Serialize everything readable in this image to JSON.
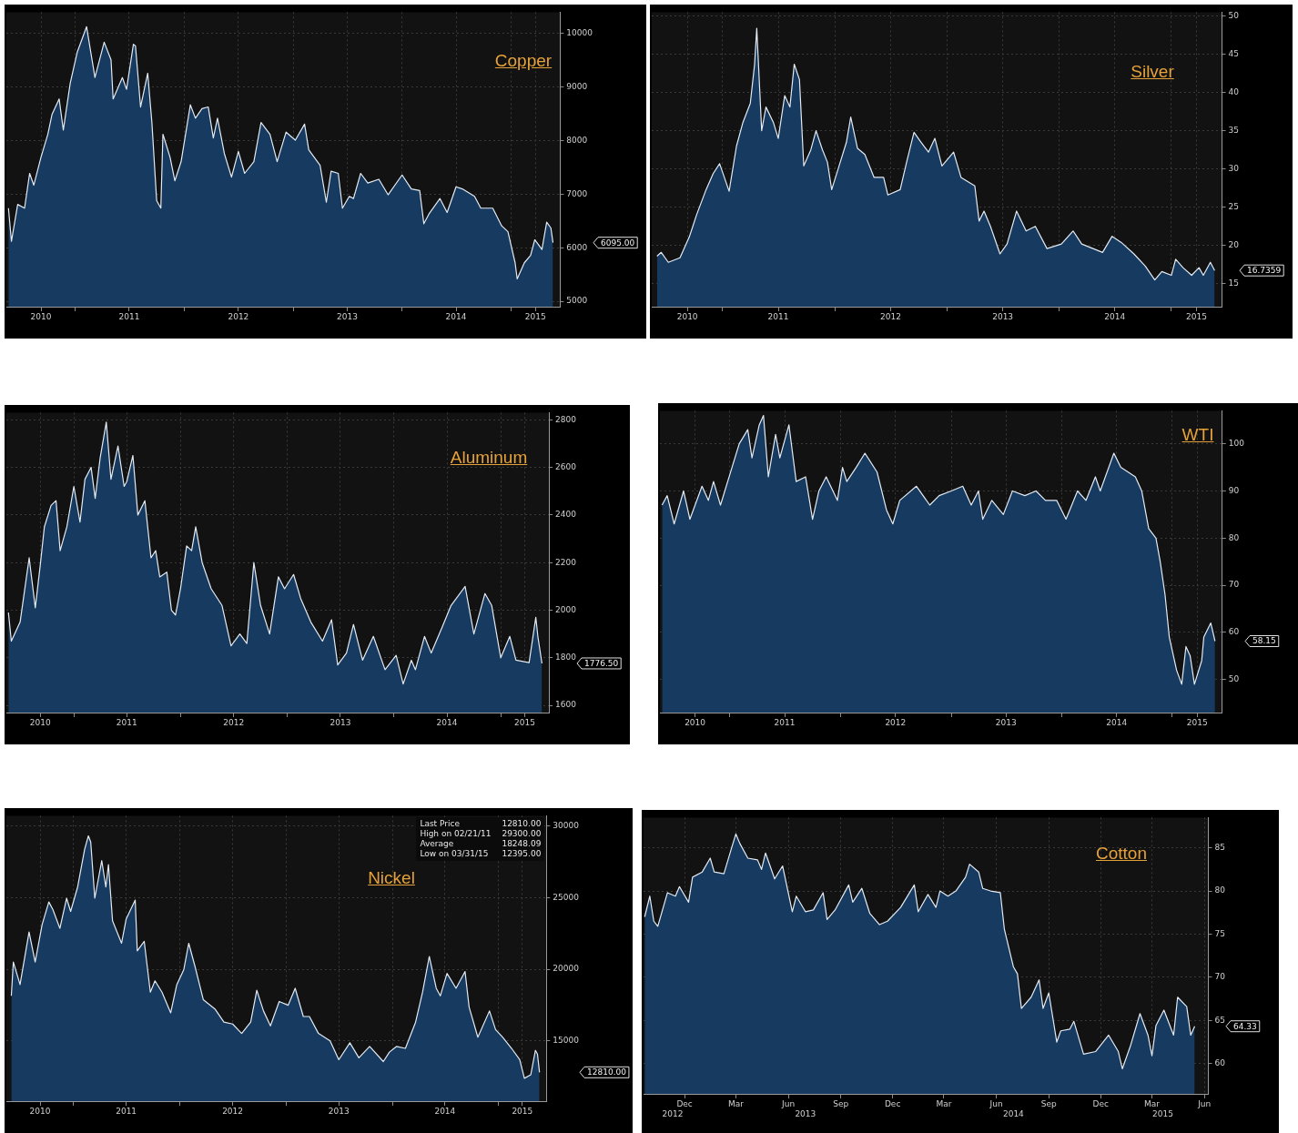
{
  "chart_data": [
    {
      "type": "area",
      "title": "Copper",
      "color": "#173a60",
      "grid": true,
      "xlim": [
        "2010-05-15",
        "2015-06-15"
      ],
      "ylim": [
        4900,
        10400
      ],
      "yticks": [
        5000,
        6000,
        7000,
        8000,
        9000,
        10000
      ],
      "xticks": [
        {
          "value": "2010-09-08",
          "label": "2010"
        },
        {
          "value": "2011-01-01",
          "label": null
        },
        {
          "value": "2011-07-01",
          "label": "2011"
        },
        {
          "value": "2012-01-01",
          "label": null
        },
        {
          "value": "2012-07-01",
          "label": "2012"
        },
        {
          "value": "2013-01-01",
          "label": null
        },
        {
          "value": "2013-07-01",
          "label": "2013"
        },
        {
          "value": "2014-01-01",
          "label": null
        },
        {
          "value": "2014-07-01",
          "label": "2014"
        },
        {
          "value": "2015-01-01",
          "label": null
        },
        {
          "value": "2015-03-24",
          "label": "2015"
        }
      ],
      "x": [
        "2010-05-22",
        "2010-06-01",
        "2010-06-22",
        "2010-07-15",
        "2010-08-01",
        "2010-08-15",
        "2010-09-08",
        "2010-10-01",
        "2010-10-15",
        "2010-11-08",
        "2010-11-22",
        "2010-12-15",
        "2011-01-08",
        "2011-02-08",
        "2011-03-08",
        "2011-04-08",
        "2011-05-01",
        "2011-05-08",
        "2011-06-08",
        "2011-06-22",
        "2011-07-15",
        "2011-07-22",
        "2011-08-08",
        "2011-09-01",
        "2011-09-15",
        "2011-10-01",
        "2011-10-15",
        "2011-10-22",
        "2011-11-15",
        "2011-12-01",
        "2011-12-22",
        "2012-01-22",
        "2012-02-08",
        "2012-03-01",
        "2012-03-22",
        "2012-04-08",
        "2012-04-22",
        "2012-05-15",
        "2012-06-08",
        "2012-07-01",
        "2012-07-22",
        "2012-08-22",
        "2012-09-15",
        "2012-10-15",
        "2012-11-08",
        "2012-12-08",
        "2013-01-08",
        "2013-02-08",
        "2013-02-22",
        "2013-04-01",
        "2013-04-22",
        "2013-05-08",
        "2013-06-01",
        "2013-06-15",
        "2013-07-08",
        "2013-07-22",
        "2013-08-15",
        "2013-09-08",
        "2013-10-15",
        "2013-11-15",
        "2014-01-01",
        "2014-02-01",
        "2014-03-01",
        "2014-03-15",
        "2014-04-01",
        "2014-05-08",
        "2014-06-01",
        "2014-07-01",
        "2014-07-22",
        "2014-09-01",
        "2014-09-22",
        "2014-11-01",
        "2014-12-01",
        "2014-12-22",
        "2015-01-15",
        "2015-01-22",
        "2015-02-15",
        "2015-03-08",
        "2015-03-22",
        "2015-04-15",
        "2015-05-01",
        "2015-05-15",
        "2015-05-22"
      ],
      "values": [
        6740,
        6120,
        6810,
        6740,
        7390,
        7170,
        7690,
        8120,
        8490,
        8780,
        8200,
        9070,
        9660,
        10130,
        9180,
        9840,
        9510,
        8780,
        9180,
        8960,
        9800,
        9770,
        8630,
        9260,
        8340,
        6880,
        6740,
        8120,
        7690,
        7250,
        7610,
        8670,
        8420,
        8600,
        8630,
        8050,
        8420,
        7760,
        7320,
        7800,
        7390,
        7610,
        8340,
        8120,
        7610,
        8160,
        8010,
        8310,
        7830,
        7540,
        6850,
        7430,
        7390,
        6740,
        6960,
        6920,
        7390,
        7210,
        7280,
        6990,
        7360,
        7100,
        7070,
        6450,
        6630,
        6920,
        6660,
        7140,
        7100,
        6960,
        6740,
        6740,
        6410,
        6300,
        5720,
        5420,
        5720,
        5860,
        6150,
        5970,
        6480,
        6370,
        6095
      ],
      "annotations": [
        "6095.00"
      ]
    },
    {
      "type": "area",
      "title": "Silver",
      "color": "#173a60",
      "grid": true,
      "xlim": [
        "2010-05-15",
        "2015-06-15"
      ],
      "ylim": [
        12,
        50.5
      ],
      "yticks": [
        15,
        20,
        25,
        30,
        35,
        40,
        45,
        50
      ],
      "xticks": [
        {
          "value": "2010-09-08",
          "label": "2010"
        },
        {
          "value": "2011-01-01",
          "label": null
        },
        {
          "value": "2011-07-01",
          "label": "2011"
        },
        {
          "value": "2012-01-01",
          "label": null
        },
        {
          "value": "2012-07-01",
          "label": "2012"
        },
        {
          "value": "2013-01-01",
          "label": null
        },
        {
          "value": "2013-07-01",
          "label": "2013"
        },
        {
          "value": "2014-01-01",
          "label": null
        },
        {
          "value": "2014-07-01",
          "label": "2014"
        },
        {
          "value": "2015-01-01",
          "label": null
        },
        {
          "value": "2015-03-24",
          "label": "2015"
        }
      ],
      "x": [
        "2010-06-01",
        "2010-06-15",
        "2010-07-08",
        "2010-08-15",
        "2010-09-15",
        "2010-10-08",
        "2010-11-08",
        "2010-12-01",
        "2010-12-22",
        "2011-01-22",
        "2011-02-15",
        "2011-03-08",
        "2011-04-01",
        "2011-04-15",
        "2011-04-22",
        "2011-05-08",
        "2011-05-22",
        "2011-06-15",
        "2011-07-01",
        "2011-07-22",
        "2011-08-08",
        "2011-08-22",
        "2011-09-08",
        "2011-09-22",
        "2011-10-15",
        "2011-11-01",
        "2011-11-22",
        "2011-12-08",
        "2011-12-22",
        "2012-01-15",
        "2012-02-08",
        "2012-02-22",
        "2012-03-15",
        "2012-04-08",
        "2012-05-08",
        "2012-06-08",
        "2012-06-22",
        "2012-08-01",
        "2012-08-22",
        "2012-09-15",
        "2012-10-08",
        "2012-11-01",
        "2012-11-22",
        "2012-12-15",
        "2013-01-22",
        "2013-02-15",
        "2013-04-01",
        "2013-04-15",
        "2013-05-01",
        "2013-05-22",
        "2013-06-22",
        "2013-07-15",
        "2013-08-15",
        "2013-09-15",
        "2013-10-15",
        "2013-11-22",
        "2014-01-08",
        "2014-02-15",
        "2014-03-15",
        "2014-05-22",
        "2014-06-22",
        "2014-07-22",
        "2014-09-01",
        "2014-10-08",
        "2014-11-08",
        "2014-12-01",
        "2015-01-01",
        "2015-01-15",
        "2015-02-08",
        "2015-03-08",
        "2015-04-01",
        "2015-04-15",
        "2015-05-08",
        "2015-05-22"
      ],
      "values": [
        18.6,
        19.1,
        17.8,
        18.4,
        21.2,
        24.0,
        27.3,
        29.4,
        30.7,
        27.1,
        33.0,
        36.1,
        38.6,
        43.7,
        48.4,
        35.0,
        38.1,
        36.1,
        34.0,
        39.6,
        38.1,
        43.7,
        41.7,
        30.4,
        32.5,
        35.0,
        32.5,
        30.9,
        27.3,
        30.4,
        33.5,
        36.8,
        32.7,
        31.9,
        28.9,
        28.9,
        26.6,
        27.3,
        30.9,
        34.8,
        33.5,
        32.2,
        34.0,
        30.4,
        32.2,
        28.9,
        27.8,
        23.2,
        24.5,
        22.5,
        18.9,
        20.2,
        24.5,
        21.9,
        22.5,
        19.6,
        20.2,
        21.9,
        20.2,
        19.1,
        21.2,
        20.4,
        18.9,
        17.3,
        15.5,
        16.6,
        16.1,
        18.2,
        17.1,
        16.1,
        17.1,
        16.1,
        17.8,
        16.7359
      ],
      "annotations": [
        "16.7359"
      ]
    },
    {
      "type": "area",
      "title": "Aluminum",
      "color": "#173a60",
      "grid": true,
      "xlim": [
        "2010-05-15",
        "2015-06-15"
      ],
      "ylim": [
        1570,
        2830
      ],
      "yticks": [
        1600,
        1800,
        2000,
        2200,
        2400,
        2600,
        2800
      ],
      "xticks": [
        {
          "value": "2010-09-08",
          "label": "2010"
        },
        {
          "value": "2011-01-01",
          "label": null
        },
        {
          "value": "2011-07-01",
          "label": "2011"
        },
        {
          "value": "2012-01-01",
          "label": null
        },
        {
          "value": "2012-07-01",
          "label": "2012"
        },
        {
          "value": "2013-01-01",
          "label": null
        },
        {
          "value": "2013-07-01",
          "label": "2013"
        },
        {
          "value": "2014-01-01",
          "label": null
        },
        {
          "value": "2014-07-01",
          "label": "2014"
        },
        {
          "value": "2015-01-01",
          "label": null
        },
        {
          "value": "2015-03-24",
          "label": "2015"
        }
      ],
      "x": [
        "2010-05-22",
        "2010-06-01",
        "2010-07-01",
        "2010-08-01",
        "2010-08-22",
        "2010-09-08",
        "2010-09-22",
        "2010-10-15",
        "2010-11-01",
        "2010-11-15",
        "2010-12-08",
        "2011-01-01",
        "2011-01-22",
        "2011-02-08",
        "2011-03-01",
        "2011-03-15",
        "2011-04-01",
        "2011-04-22",
        "2011-05-08",
        "2011-06-01",
        "2011-06-22",
        "2011-07-01",
        "2011-07-22",
        "2011-08-08",
        "2011-09-01",
        "2011-09-22",
        "2011-10-08",
        "2011-10-22",
        "2011-11-15",
        "2011-12-01",
        "2011-12-15",
        "2012-01-01",
        "2012-01-22",
        "2012-02-08",
        "2012-02-22",
        "2012-03-15",
        "2012-04-15",
        "2012-05-22",
        "2012-06-22",
        "2012-07-22",
        "2012-08-15",
        "2012-09-08",
        "2012-10-01",
        "2012-11-01",
        "2012-12-01",
        "2012-12-22",
        "2013-01-22",
        "2013-02-15",
        "2013-03-22",
        "2013-05-01",
        "2013-06-01",
        "2013-06-22",
        "2013-07-22",
        "2013-08-15",
        "2013-09-15",
        "2013-10-22",
        "2013-12-01",
        "2014-01-08",
        "2014-02-01",
        "2014-03-01",
        "2014-03-15",
        "2014-04-15",
        "2014-05-08",
        "2014-06-15",
        "2014-07-15",
        "2014-09-01",
        "2014-10-01",
        "2014-11-08",
        "2014-12-01",
        "2015-01-01",
        "2015-02-01",
        "2015-02-22",
        "2015-04-08",
        "2015-05-01",
        "2015-05-08",
        "2015-05-22"
      ],
      "values": [
        1990,
        1870,
        1950,
        2220,
        2010,
        2190,
        2350,
        2440,
        2460,
        2250,
        2350,
        2520,
        2370,
        2550,
        2600,
        2470,
        2640,
        2790,
        2550,
        2690,
        2520,
        2540,
        2650,
        2400,
        2460,
        2220,
        2250,
        2140,
        2160,
        2000,
        1980,
        2090,
        2270,
        2250,
        2350,
        2200,
        2090,
        2020,
        1850,
        1900,
        1860,
        2200,
        2020,
        1900,
        2140,
        2090,
        2150,
        2050,
        1950,
        1870,
        1960,
        1770,
        1820,
        1940,
        1790,
        1890,
        1750,
        1810,
        1690,
        1790,
        1750,
        1890,
        1820,
        1930,
        2020,
        2100,
        1900,
        2070,
        2020,
        1800,
        1890,
        1790,
        1780,
        1970,
        1890,
        1776.5
      ],
      "annotations": [
        "1776.50"
      ]
    },
    {
      "type": "area",
      "title": "WTI",
      "color": "#173a60",
      "grid": true,
      "xlim": [
        "2010-05-15",
        "2015-06-15"
      ],
      "ylim": [
        43,
        107
      ],
      "yticks": [
        50,
        60,
        70,
        80,
        90,
        100
      ],
      "xticks": [
        {
          "value": "2010-09-08",
          "label": "2010"
        },
        {
          "value": "2011-01-01",
          "label": null
        },
        {
          "value": "2011-07-01",
          "label": "2011"
        },
        {
          "value": "2012-01-01",
          "label": null
        },
        {
          "value": "2012-07-01",
          "label": "2012"
        },
        {
          "value": "2013-01-01",
          "label": null
        },
        {
          "value": "2013-07-01",
          "label": "2013"
        },
        {
          "value": "2014-01-01",
          "label": null
        },
        {
          "value": "2014-07-01",
          "label": "2014"
        },
        {
          "value": "2015-01-01",
          "label": null
        },
        {
          "value": "2015-03-24",
          "label": "2015"
        }
      ],
      "x": [
        "2010-05-22",
        "2010-06-08",
        "2010-07-01",
        "2010-08-01",
        "2010-08-22",
        "2010-10-01",
        "2010-10-22",
        "2010-11-08",
        "2010-12-01",
        "2011-01-08",
        "2011-02-01",
        "2011-03-01",
        "2011-03-15",
        "2011-04-08",
        "2011-04-22",
        "2011-05-08",
        "2011-06-01",
        "2011-06-15",
        "2011-07-15",
        "2011-08-08",
        "2011-09-08",
        "2011-10-01",
        "2011-10-22",
        "2011-11-15",
        "2011-12-22",
        "2012-01-08",
        "2012-01-22",
        "2012-02-22",
        "2012-03-22",
        "2012-05-01",
        "2012-06-01",
        "2012-06-22",
        "2012-07-15",
        "2012-09-08",
        "2012-10-22",
        "2012-11-22",
        "2013-01-01",
        "2013-02-08",
        "2013-03-08",
        "2013-04-01",
        "2013-04-15",
        "2013-05-15",
        "2013-06-22",
        "2013-07-22",
        "2013-09-01",
        "2013-10-08",
        "2013-11-08",
        "2013-12-15",
        "2014-01-15",
        "2014-02-22",
        "2014-03-22",
        "2014-04-22",
        "2014-05-08",
        "2014-06-22",
        "2014-07-15",
        "2014-08-08",
        "2014-09-01",
        "2014-09-22",
        "2014-10-15",
        "2014-11-08",
        "2014-11-22",
        "2014-12-08",
        "2014-12-22",
        "2015-01-15",
        "2015-02-01",
        "2015-02-15",
        "2015-03-01",
        "2015-03-15",
        "2015-04-08",
        "2015-04-15",
        "2015-05-08",
        "2015-05-22"
      ],
      "values": [
        87,
        89,
        83,
        90,
        84,
        91,
        88,
        92,
        87,
        95,
        100,
        103,
        97,
        104,
        106,
        93,
        102,
        97,
        104,
        92,
        93,
        84,
        90,
        93,
        88,
        95,
        92,
        95,
        98,
        94,
        86,
        83,
        88,
        91,
        87,
        89,
        90,
        91,
        87,
        90,
        84,
        88,
        85,
        90,
        89,
        90,
        88,
        88,
        84,
        90,
        88,
        93,
        90,
        98,
        95,
        94,
        93,
        90,
        82,
        80,
        75,
        68,
        59,
        52,
        49,
        57,
        55,
        49,
        54,
        59,
        62,
        58.15
      ],
      "annotations": [
        "58.15"
      ]
    },
    {
      "type": "area",
      "title": "Nickel",
      "color": "#173a60",
      "grid": true,
      "xlim": [
        "2010-05-15",
        "2015-06-15"
      ],
      "ylim": [
        10800,
        30700
      ],
      "yticks": [
        15000,
        20000,
        25000,
        30000
      ],
      "xticks": [
        {
          "value": "2010-09-08",
          "label": "2010"
        },
        {
          "value": "2011-01-01",
          "label": null
        },
        {
          "value": "2011-07-01",
          "label": "2011"
        },
        {
          "value": "2012-01-01",
          "label": null
        },
        {
          "value": "2012-07-01",
          "label": "2012"
        },
        {
          "value": "2013-01-01",
          "label": null
        },
        {
          "value": "2013-07-01",
          "label": "2013"
        },
        {
          "value": "2014-01-01",
          "label": null
        },
        {
          "value": "2014-07-01",
          "label": "2014"
        },
        {
          "value": "2015-01-01",
          "label": null
        },
        {
          "value": "2015-03-24",
          "label": "2015"
        }
      ],
      "x": [
        "2010-06-01",
        "2010-06-08",
        "2010-07-01",
        "2010-08-01",
        "2010-08-22",
        "2010-09-15",
        "2010-10-08",
        "2010-10-22",
        "2010-11-15",
        "2010-12-08",
        "2010-12-22",
        "2011-01-15",
        "2011-02-08",
        "2011-02-21",
        "2011-03-01",
        "2011-03-15",
        "2011-04-08",
        "2011-04-22",
        "2011-05-01",
        "2011-05-15",
        "2011-06-15",
        "2011-07-01",
        "2011-08-01",
        "2011-08-08",
        "2011-09-01",
        "2011-09-22",
        "2011-10-08",
        "2011-11-01",
        "2011-12-01",
        "2011-12-22",
        "2012-01-15",
        "2012-02-01",
        "2012-02-22",
        "2012-03-22",
        "2012-05-01",
        "2012-06-01",
        "2012-07-01",
        "2012-08-01",
        "2012-09-01",
        "2012-09-22",
        "2012-10-15",
        "2012-11-08",
        "2012-12-08",
        "2013-01-08",
        "2013-02-01",
        "2013-03-01",
        "2013-03-22",
        "2013-04-22",
        "2013-06-01",
        "2013-07-01",
        "2013-08-08",
        "2013-09-08",
        "2013-10-15",
        "2013-12-01",
        "2013-12-22",
        "2014-01-15",
        "2014-02-15",
        "2014-03-22",
        "2014-04-15",
        "2014-05-08",
        "2014-06-01",
        "2014-06-15",
        "2014-07-08",
        "2014-08-08",
        "2014-09-08",
        "2014-09-22",
        "2014-10-22",
        "2014-12-01",
        "2014-12-22",
        "2015-01-15",
        "2015-02-15",
        "2015-03-15",
        "2015-03-31",
        "2015-04-22",
        "2015-05-08",
        "2015-05-15",
        "2015-05-22"
      ],
      "values": [
        18140,
        20500,
        18930,
        22590,
        20500,
        23120,
        24690,
        24160,
        22850,
        24950,
        24030,
        25730,
        28350,
        29300,
        28870,
        24950,
        27570,
        25730,
        27300,
        23380,
        21810,
        23510,
        24820,
        21280,
        21940,
        18400,
        19190,
        18400,
        16960,
        18930,
        19970,
        21810,
        20240,
        17880,
        17230,
        16310,
        16180,
        15520,
        16310,
        18530,
        17090,
        16050,
        17750,
        17490,
        18670,
        16700,
        16700,
        15520,
        15000,
        13690,
        14870,
        13820,
        14610,
        13560,
        14220,
        14610,
        14480,
        16310,
        18400,
        20890,
        18670,
        18140,
        19710,
        18670,
        19840,
        17360,
        15260,
        17090,
        15790,
        15260,
        14480,
        13690,
        12395,
        12640,
        14340,
        14080,
        12810
      ],
      "annotations": [
        "12810.00",
        "Last Price 12810.00",
        "High on 02/21/11 29300.00",
        "Average 18248.09",
        "Low on 03/31/15 12395.00"
      ]
    },
    {
      "type": "area",
      "title": "Cotton",
      "color": "#173a60",
      "grid": true,
      "xlim": [
        "2012-09-20",
        "2015-06-08"
      ],
      "ylim": [
        56.5,
        88.5
      ],
      "yticks": [
        60,
        65,
        70,
        75,
        80,
        85
      ],
      "xticks": [
        {
          "value": "2012-12-01",
          "label": "Dec"
        },
        {
          "value": "2013-03-01",
          "label": "Mar"
        },
        {
          "value": "2013-06-01",
          "label": "Jun"
        },
        {
          "value": "2013-09-01",
          "label": "Sep"
        },
        {
          "value": "2013-12-01",
          "label": "Dec"
        },
        {
          "value": "2014-03-01",
          "label": "Mar"
        },
        {
          "value": "2014-06-01",
          "label": "Jun"
        },
        {
          "value": "2014-09-01",
          "label": "Sep"
        },
        {
          "value": "2014-12-01",
          "label": "Dec"
        },
        {
          "value": "2015-03-01",
          "label": "Mar"
        },
        {
          "value": "2015-06-01",
          "label": "Jun"
        }
      ],
      "x2lim": [
        "2012-09-20",
        "2015-06-08"
      ],
      "x2ticks": [
        {
          "value": "2012-11-10",
          "label": "2012"
        },
        {
          "value": "2013-07-01",
          "label": "2013"
        },
        {
          "value": "2014-07-01",
          "label": "2014"
        },
        {
          "value": "2015-03-20",
          "label": "2015"
        }
      ],
      "x": [
        "2012-09-22",
        "2012-10-01",
        "2012-10-08",
        "2012-10-15",
        "2012-11-01",
        "2012-11-15",
        "2012-11-22",
        "2012-12-08",
        "2012-12-15",
        "2013-01-01",
        "2013-01-15",
        "2013-01-22",
        "2013-02-08",
        "2013-02-22",
        "2013-03-01",
        "2013-03-08",
        "2013-03-22",
        "2013-04-08",
        "2013-04-15",
        "2013-04-22",
        "2013-05-08",
        "2013-05-22",
        "2013-06-08",
        "2013-06-15",
        "2013-07-01",
        "2013-07-15",
        "2013-08-01",
        "2013-08-08",
        "2013-08-22",
        "2013-09-15",
        "2013-09-22",
        "2013-10-08",
        "2013-10-22",
        "2013-11-08",
        "2013-11-22",
        "2013-12-15",
        "2014-01-08",
        "2014-01-15",
        "2014-02-01",
        "2014-02-15",
        "2014-02-22",
        "2014-03-08",
        "2014-03-22",
        "2014-04-08",
        "2014-04-15",
        "2014-05-01",
        "2014-05-08",
        "2014-05-22",
        "2014-06-08",
        "2014-06-15",
        "2014-07-01",
        "2014-07-08",
        "2014-07-15",
        "2014-08-01",
        "2014-08-15",
        "2014-08-22",
        "2014-09-01",
        "2014-09-15",
        "2014-09-22",
        "2014-10-08",
        "2014-10-15",
        "2014-11-01",
        "2014-11-22",
        "2014-12-15",
        "2015-01-01",
        "2015-01-08",
        "2015-01-22",
        "2015-02-08",
        "2015-02-22",
        "2015-03-01",
        "2015-03-08",
        "2015-03-22",
        "2015-04-08",
        "2015-04-15",
        "2015-05-01",
        "2015-05-08",
        "2015-05-15"
      ],
      "values": [
        77.0,
        79.4,
        76.5,
        75.9,
        79.8,
        79.4,
        80.5,
        78.7,
        81.6,
        82.2,
        83.8,
        82.2,
        82.0,
        85.1,
        86.6,
        85.5,
        83.8,
        83.6,
        82.5,
        84.4,
        81.4,
        82.9,
        77.6,
        79.4,
        77.6,
        77.8,
        79.8,
        76.7,
        77.8,
        80.7,
        78.7,
        80.3,
        77.4,
        76.1,
        76.5,
        78.1,
        80.7,
        77.6,
        79.6,
        78.1,
        80.0,
        79.4,
        80.0,
        81.6,
        83.1,
        82.2,
        80.3,
        80.0,
        79.8,
        75.6,
        71.2,
        70.4,
        66.4,
        67.7,
        69.7,
        66.4,
        68.2,
        62.5,
        63.8,
        64.0,
        64.9,
        61.1,
        61.4,
        63.3,
        61.4,
        59.4,
        62.0,
        65.8,
        63.3,
        60.9,
        64.4,
        66.2,
        63.3,
        67.7,
        66.6,
        63.3,
        64.33
      ],
      "annotations": [
        "64.33"
      ]
    }
  ]
}
